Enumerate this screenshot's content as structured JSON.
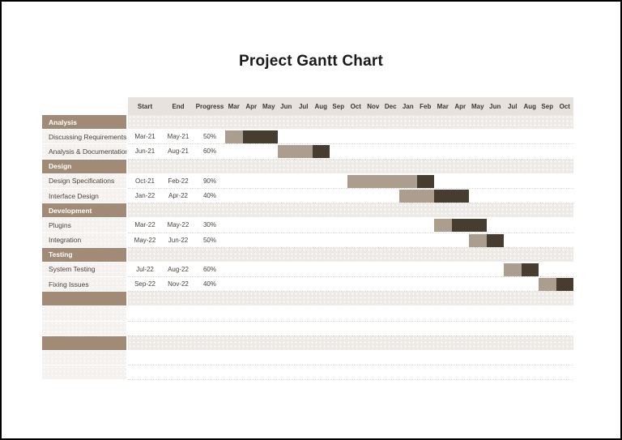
{
  "title": "Project Gantt Chart",
  "table": {
    "header": {
      "start_label": "Start",
      "end_label": "End",
      "progress_label": "Progress",
      "months": [
        "Mar",
        "Apr",
        "May",
        "Jun",
        "Jul",
        "Aug",
        "Sep",
        "Oct",
        "Nov",
        "Dec",
        "Jan",
        "Feb",
        "Mar",
        "Apr",
        "May",
        "Jun",
        "Jul",
        "Aug",
        "Sep",
        "Oct"
      ]
    },
    "rows": [
      {
        "type": "section",
        "label": "Analysis"
      },
      {
        "type": "task",
        "label": "Discussing Requirements",
        "start": "Mar-21",
        "end": "May-21",
        "progress": "50%",
        "bar": {
          "start_index": 0,
          "light_cells": 1,
          "dark_cells": 2
        }
      },
      {
        "type": "task",
        "label": "Analysis & Documentation",
        "start": "Jun-21",
        "end": "Aug-21",
        "progress": "60%",
        "bar": {
          "start_index": 3,
          "light_cells": 2,
          "dark_cells": 1
        }
      },
      {
        "type": "section",
        "label": "Design"
      },
      {
        "type": "task",
        "label": "Design Specifications",
        "start": "Oct-21",
        "end": "Feb-22",
        "progress": "90%",
        "bar": {
          "start_index": 7,
          "light_cells": 4,
          "dark_cells": 1
        }
      },
      {
        "type": "task",
        "label": "Interface Design",
        "start": "Jan-22",
        "end": "Apr-22",
        "progress": "40%",
        "bar": {
          "start_index": 10,
          "light_cells": 2,
          "dark_cells": 2
        }
      },
      {
        "type": "section",
        "label": "Development"
      },
      {
        "type": "task",
        "label": "Plugins",
        "start": "Mar-22",
        "end": "May-22",
        "progress": "30%",
        "bar": {
          "start_index": 12,
          "light_cells": 1,
          "dark_cells": 2
        }
      },
      {
        "type": "task",
        "label": "Integration",
        "start": "May-22",
        "end": "Jun-22",
        "progress": "50%",
        "bar": {
          "start_index": 14,
          "light_cells": 1,
          "dark_cells": 1
        }
      },
      {
        "type": "section",
        "label": "Testing"
      },
      {
        "type": "task",
        "label": "System Testing",
        "start": "Jul-22",
        "end": "Aug-22",
        "progress": "60%",
        "bar": {
          "start_index": 16,
          "light_cells": 1,
          "dark_cells": 1
        }
      },
      {
        "type": "task",
        "label": "Fixing Issues",
        "start": "Sep-22",
        "end": "Nov-22",
        "progress": "40%",
        "bar": {
          "start_index": 18,
          "light_cells": 1,
          "dark_cells": 1
        }
      },
      {
        "type": "section-empty",
        "label": ""
      },
      {
        "type": "empty",
        "label": ""
      },
      {
        "type": "empty",
        "label": ""
      },
      {
        "type": "section-empty",
        "label": ""
      },
      {
        "type": "empty",
        "label": ""
      },
      {
        "type": "empty",
        "label": ""
      }
    ]
  },
  "colors": {
    "border": "#000000",
    "title_text": "#1a1a1a",
    "table_header_bg": "#e7e2de",
    "header_text": "#3d372f",
    "section_header_bg": "#a28b76",
    "section_row_stripe": "#edeae6",
    "task_label_bg": "#f4f1ee",
    "task_text": "#4b443c",
    "bar_completed": "#ab9e8e",
    "bar_remaining": "#473c30"
  },
  "chart_data": {
    "type": "bar",
    "variant": "gantt",
    "title": "Project Gantt Chart",
    "timeline_months": [
      "Mar-21",
      "Apr-21",
      "May-21",
      "Jun-21",
      "Jul-21",
      "Aug-21",
      "Sep-21",
      "Oct-21",
      "Nov-21",
      "Dec-21",
      "Jan-22",
      "Feb-22",
      "Mar-22",
      "Apr-22",
      "May-22",
      "Jun-22",
      "Jul-22",
      "Aug-22",
      "Sep-22",
      "Oct-22"
    ],
    "columns": [
      "Start",
      "End",
      "Progress"
    ],
    "legend_position": "none",
    "grid": false,
    "sections": [
      {
        "name": "Analysis",
        "tasks": [
          {
            "name": "Discussing Requirements",
            "start": "Mar-21",
            "end": "May-21",
            "progress_pct": 50
          },
          {
            "name": "Analysis & Documentation",
            "start": "Jun-21",
            "end": "Aug-21",
            "progress_pct": 60
          }
        ]
      },
      {
        "name": "Design",
        "tasks": [
          {
            "name": "Design Specifications",
            "start": "Oct-21",
            "end": "Feb-22",
            "progress_pct": 90
          },
          {
            "name": "Interface Design",
            "start": "Jan-22",
            "end": "Apr-22",
            "progress_pct": 40
          }
        ]
      },
      {
        "name": "Development",
        "tasks": [
          {
            "name": "Plugins",
            "start": "Mar-22",
            "end": "May-22",
            "progress_pct": 30
          },
          {
            "name": "Integration",
            "start": "May-22",
            "end": "Jun-22",
            "progress_pct": 50
          }
        ]
      },
      {
        "name": "Testing",
        "tasks": [
          {
            "name": "System Testing",
            "start": "Jul-22",
            "end": "Aug-22",
            "progress_pct": 60
          },
          {
            "name": "Fixing Issues",
            "start": "Sep-22",
            "end": "Nov-22",
            "progress_pct": 40
          }
        ]
      }
    ]
  }
}
